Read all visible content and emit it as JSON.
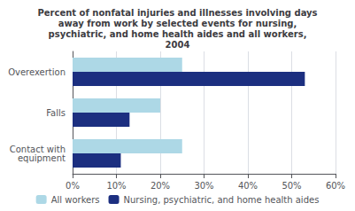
{
  "chart_data": {
    "type": "bar",
    "orientation": "horizontal",
    "title": "Percent of nonfatal injuries and illnesses involving days\naway from work by selected events for nursing,\npsychiatric, and home health aides and all workers,\n2004",
    "categories": [
      "Overexertion",
      "Falls",
      "Contact with\nequipment"
    ],
    "series": [
      {
        "name": "All workers",
        "color": "#add8e6",
        "values": [
          25,
          20,
          25
        ]
      },
      {
        "name": "Nursing, psychiatric, and home health aides",
        "color": "#1c2f80",
        "values": [
          53,
          13,
          11
        ]
      }
    ],
    "xlim": [
      0,
      60
    ],
    "xticks": [
      {
        "value": 0,
        "label": "0%"
      },
      {
        "value": 10,
        "label": "10%"
      },
      {
        "value": 20,
        "label": "20%"
      },
      {
        "value": 30,
        "label": "30%"
      },
      {
        "value": 40,
        "label": "40%"
      },
      {
        "value": 50,
        "label": "50%"
      },
      {
        "value": 60,
        "label": "60%"
      }
    ],
    "grid": true,
    "legend": "bottom"
  }
}
